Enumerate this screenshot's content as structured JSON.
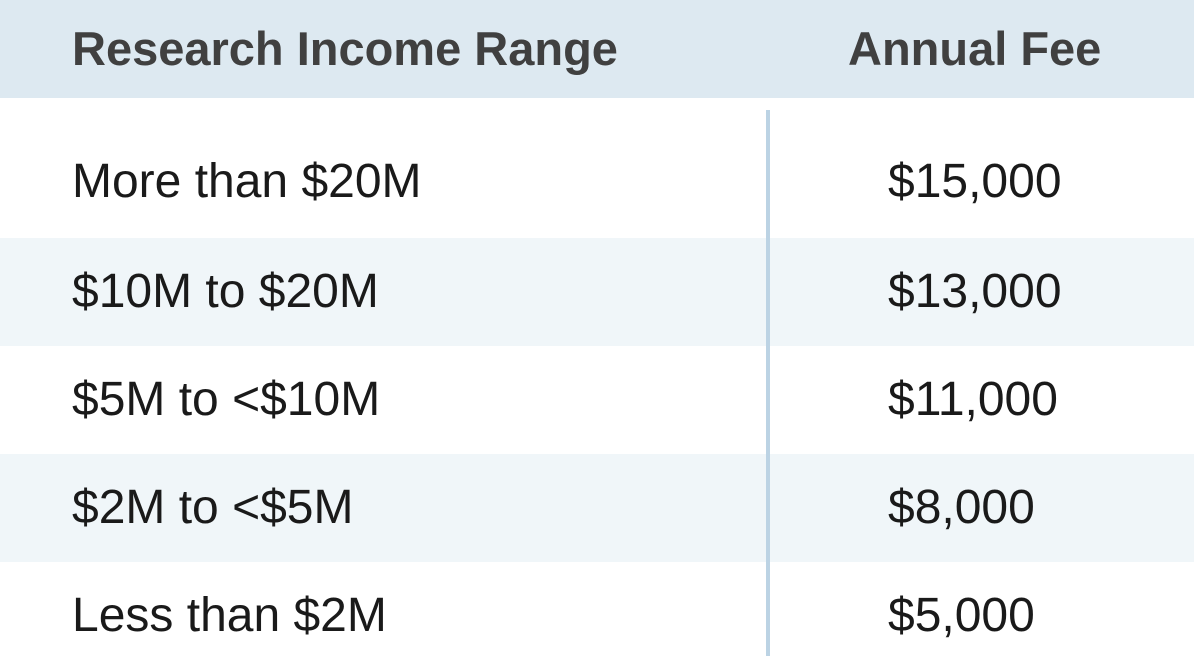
{
  "table": {
    "headers": {
      "range": "Research Income Range",
      "fee": "Annual Fee"
    },
    "rows": [
      {
        "range": "More than $20M",
        "fee": "$15,000"
      },
      {
        "range": "$10M to $20M",
        "fee": "$13,000"
      },
      {
        "range": "$5M to <$10M",
        "fee": "$11,000"
      },
      {
        "range": "$2M to <$5M",
        "fee": "$8,000"
      },
      {
        "range": "Less than $2M",
        "fee": "$5,000"
      }
    ]
  },
  "colors": {
    "header_background": "#dde9f1",
    "alt_row_background": "#f0f6f9",
    "divider": "#bcd3e4",
    "header_text": "#404040",
    "body_text": "#1a1a1a"
  }
}
